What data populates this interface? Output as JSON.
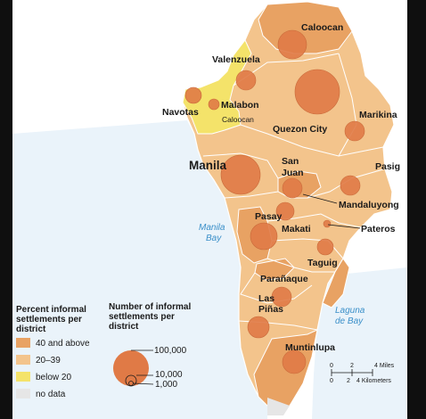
{
  "map": {
    "places": {
      "caloocan": "Caloocan",
      "valenzuela": "Valenzuela",
      "navotas": "Navotas",
      "malabon": "Malabon",
      "caloocan_south": "Caloocan",
      "quezon_city": "Quezon City",
      "marikina": "Marikina",
      "manila": "Manila",
      "san_juan_1": "San",
      "san_juan_2": "Juan",
      "pasig": "Pasig",
      "mandaluyong": "Mandaluyong",
      "pasay": "Pasay",
      "makati": "Makati",
      "pateros": "Pateros",
      "taguig": "Taguig",
      "paranaque": "Parañaque",
      "las_pinas_1": "Las",
      "las_pinas_2": "Piñas",
      "muntinlupa": "Muntinlupa"
    },
    "water": {
      "manila_bay_1": "Manila",
      "manila_bay_2": "Bay",
      "laguna_1": "Laguna",
      "laguna_2": "de Bay"
    },
    "colors": {
      "high": "#e8a263",
      "mid": "#f3c48c",
      "low": "#f4e36a",
      "nodata": "#e6e6e6",
      "circle": "#e07a46",
      "water": "#3a8fc9"
    }
  },
  "legend": {
    "percent_title_1": "Percent informal",
    "percent_title_2": "settlements per",
    "percent_title_3": "district",
    "items": [
      {
        "label": "40 and above",
        "color": "#e8a263"
      },
      {
        "label": "20–39",
        "color": "#f3c48c"
      },
      {
        "label": "below 20",
        "color": "#f4e36a"
      },
      {
        "label": "no data",
        "color": "#e6e6e6"
      }
    ],
    "number_title_1": "Number of informal",
    "number_title_2": "settlements per",
    "number_title_3": "district",
    "sizes": [
      "100,000",
      "10,000",
      "1,000"
    ]
  },
  "scale": {
    "ticks_top": [
      "0",
      "2",
      "4 Miles"
    ],
    "ticks_bottom": [
      "0",
      "2",
      "4 Kilometers"
    ]
  }
}
